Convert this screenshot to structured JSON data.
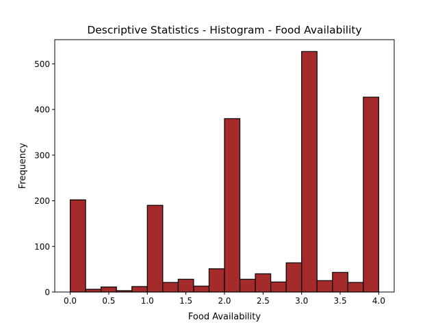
{
  "chart_data": {
    "type": "bar",
    "title": "Descriptive Statistics - Histogram - Food Availability",
    "xlabel": "Food Availability",
    "ylabel": "Frequency",
    "xlim": [
      -0.2,
      4.2
    ],
    "ylim": [
      0,
      553
    ],
    "xticks": [
      0.0,
      0.5,
      1.0,
      1.5,
      2.0,
      2.5,
      3.0,
      3.5,
      4.0
    ],
    "xtick_labels": [
      "0.0",
      "0.5",
      "1.0",
      "1.5",
      "2.0",
      "2.5",
      "3.0",
      "3.5",
      "4.0"
    ],
    "yticks": [
      0,
      100,
      200,
      300,
      400,
      500
    ],
    "ytick_labels": [
      "0",
      "100",
      "200",
      "300",
      "400",
      "500"
    ],
    "bin_edges": [
      0.0,
      0.2,
      0.4,
      0.6,
      0.8,
      1.0,
      1.2,
      1.4,
      1.6,
      1.8,
      2.0,
      2.2,
      2.4,
      2.6,
      2.8,
      3.0,
      3.2,
      3.4,
      3.6,
      3.8,
      4.0
    ],
    "values": [
      202,
      6,
      11,
      3,
      12,
      190,
      21,
      28,
      13,
      51,
      380,
      28,
      40,
      22,
      64,
      527,
      25,
      43,
      21,
      427
    ],
    "bar_color": "#a52a2a",
    "edge_color": "#000000",
    "grid": false,
    "legend": "none"
  }
}
